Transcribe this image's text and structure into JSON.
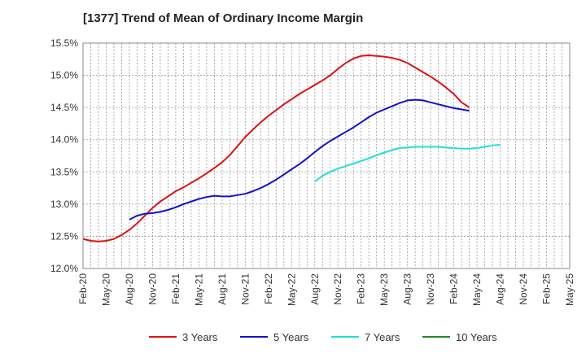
{
  "chart_data": {
    "type": "line",
    "title": "[1377]  Trend of Mean of Ordinary Income Margin",
    "xlabel": "",
    "ylabel": "",
    "x_ticks": [
      "Feb-20",
      "May-20",
      "Aug-20",
      "Nov-20",
      "Feb-21",
      "May-21",
      "Aug-21",
      "Nov-21",
      "Feb-22",
      "May-22",
      "Aug-22",
      "Nov-22",
      "Feb-23",
      "May-23",
      "Aug-23",
      "Nov-23",
      "Feb-24",
      "May-24",
      "Aug-24",
      "Nov-24",
      "Feb-25",
      "May-25"
    ],
    "y_ticks": [
      "12.0%",
      "12.5%",
      "13.0%",
      "13.5%",
      "14.0%",
      "14.5%",
      "15.0%",
      "15.5%"
    ],
    "ylim": [
      12.0,
      15.5
    ],
    "grid": true,
    "legend_position": "bottom",
    "series": [
      {
        "name": "3 Years",
        "color": "#dd1111",
        "start": 0,
        "values": [
          12.46,
          12.43,
          12.42,
          12.43,
          12.46,
          12.52,
          12.6,
          12.7,
          12.82,
          12.94,
          13.04,
          13.12,
          13.2,
          13.26,
          13.33,
          13.4,
          13.48,
          13.56,
          13.65,
          13.76,
          13.9,
          14.04,
          14.16,
          14.27,
          14.37,
          14.46,
          14.55,
          14.63,
          14.71,
          14.78,
          14.85,
          14.92,
          15.0,
          15.1,
          15.19,
          15.26,
          15.3,
          15.31,
          15.3,
          15.29,
          15.27,
          15.24,
          15.19,
          15.12,
          15.05,
          14.98,
          14.9,
          14.81,
          14.71,
          14.58,
          14.5
        ]
      },
      {
        "name": "5 Years",
        "color": "#1111cc",
        "start": 6,
        "values": [
          12.76,
          12.82,
          12.85,
          12.86,
          12.88,
          12.91,
          12.95,
          13.0,
          13.04,
          13.08,
          13.11,
          13.13,
          13.12,
          13.12,
          13.14,
          13.16,
          13.2,
          13.25,
          13.31,
          13.38,
          13.46,
          13.54,
          13.62,
          13.71,
          13.81,
          13.9,
          13.98,
          14.05,
          14.12,
          14.19,
          14.27,
          14.35,
          14.42,
          14.47,
          14.52,
          14.57,
          14.61,
          14.62,
          14.61,
          14.58,
          14.55,
          14.52,
          14.49,
          14.47,
          14.45
        ]
      },
      {
        "name": "7 Years",
        "color": "#22dddd",
        "start": 30,
        "values": [
          13.35,
          13.44,
          13.5,
          13.55,
          13.59,
          13.63,
          13.67,
          13.71,
          13.76,
          13.8,
          13.84,
          13.87,
          13.88,
          13.89,
          13.89,
          13.89,
          13.89,
          13.88,
          13.87,
          13.86,
          13.86,
          13.87,
          13.89,
          13.91,
          13.92
        ]
      },
      {
        "name": "10 Years",
        "color": "#228822",
        "start": 0,
        "values": []
      }
    ]
  }
}
